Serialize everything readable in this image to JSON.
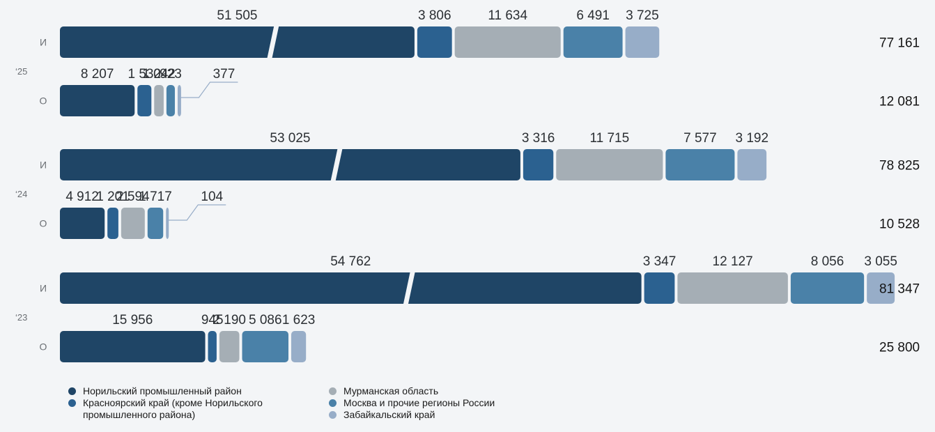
{
  "chart_data": {
    "type": "bar",
    "orientation": "horizontal-stacked",
    "years": [
      {
        "year": "‘25",
        "rows": [
          {
            "label": "И",
            "values": [
              51505,
              3806,
              11634,
              6491,
              3725
            ],
            "value_labels": [
              "51 505",
              "3 806",
              "11 634",
              "6 491",
              "3 725"
            ],
            "total": "77 161"
          },
          {
            "label": "О",
            "values": [
              8207,
              1532,
              1042,
              923,
              377
            ],
            "value_labels": [
              "8 207",
              "1 532",
              "1 042",
              "923",
              "377"
            ],
            "total": "12 081"
          }
        ]
      },
      {
        "year": "‘24",
        "rows": [
          {
            "label": "И",
            "values": [
              53025,
              3316,
              11715,
              7577,
              3192
            ],
            "value_labels": [
              "53 025",
              "3 316",
              "11 715",
              "7 577",
              "3 192"
            ],
            "total": "78 825"
          },
          {
            "label": "О",
            "values": [
              4912,
              1201,
              2594,
              1717,
              104
            ],
            "value_labels": [
              "4 912",
              "1 201",
              "2 594",
              "1 717",
              "104"
            ],
            "total": "10 528"
          }
        ]
      },
      {
        "year": "‘23",
        "rows": [
          {
            "label": "И",
            "values": [
              54762,
              3347,
              12127,
              8056,
              3055
            ],
            "value_labels": [
              "54 762",
              "3 347",
              "12 127",
              "8 056",
              "3 055"
            ],
            "total": "81 347"
          },
          {
            "label": "О",
            "values": [
              15956,
              945,
              2190,
              5086,
              1623
            ],
            "value_labels": [
              "15 956",
              "945",
              "2 190",
              "5 086",
              "1 623"
            ],
            "total": "25 800"
          }
        ]
      }
    ],
    "series": [
      {
        "name": "Норильский промышленный район",
        "color": "#1f4566"
      },
      {
        "name": "Красноярский край (кроме Норильского промышленного района)",
        "color": "#2b6190"
      },
      {
        "name": "Мурманская область",
        "color": "#a5aeb5"
      },
      {
        "name": "Москва и прочие регионы России",
        "color": "#4a81a8"
      },
      {
        "name": "Забайкальский край",
        "color": "#97adc8"
      }
    ],
    "legend_placement": "bottom-left",
    "grid": false
  }
}
